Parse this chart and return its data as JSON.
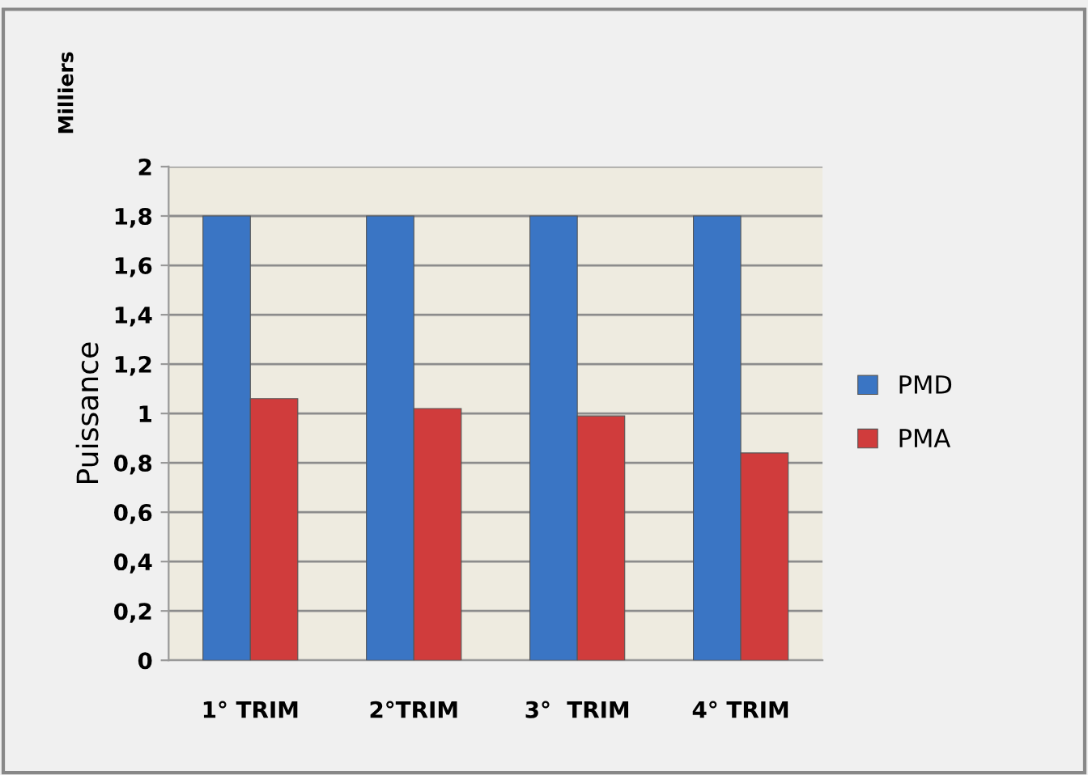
{
  "chart_data": {
    "type": "bar",
    "ylabel": "Puissance",
    "annotations": [
      "Milliers"
    ],
    "categories": [
      "1° TRIM",
      "2°TRIM",
      "3°  TRIM",
      "4° TRIM"
    ],
    "series": [
      {
        "name": "PMD",
        "color": "#3a75c4",
        "values": [
          1.8,
          1.8,
          1.8,
          1.8
        ]
      },
      {
        "name": "PMA",
        "color": "#d03c3c",
        "values": [
          1.06,
          1.02,
          0.99,
          0.84
        ]
      }
    ],
    "ylim": [
      0,
      2
    ],
    "yticks": [
      0,
      {
        "value": 0.2,
        "label": "0,2"
      },
      {
        "value": 0.4,
        "label": "0,4"
      },
      {
        "value": 0.6,
        "label": "0,6"
      },
      {
        "value": 0.8,
        "label": "0,8"
      },
      1,
      {
        "value": 1.2,
        "label": "1,2"
      },
      {
        "value": 1.4,
        "label": "1,4"
      },
      {
        "value": 1.6,
        "label": "1,6"
      },
      {
        "value": 1.8,
        "label": "1,8"
      },
      2
    ],
    "grid": "y",
    "legend": "right"
  }
}
